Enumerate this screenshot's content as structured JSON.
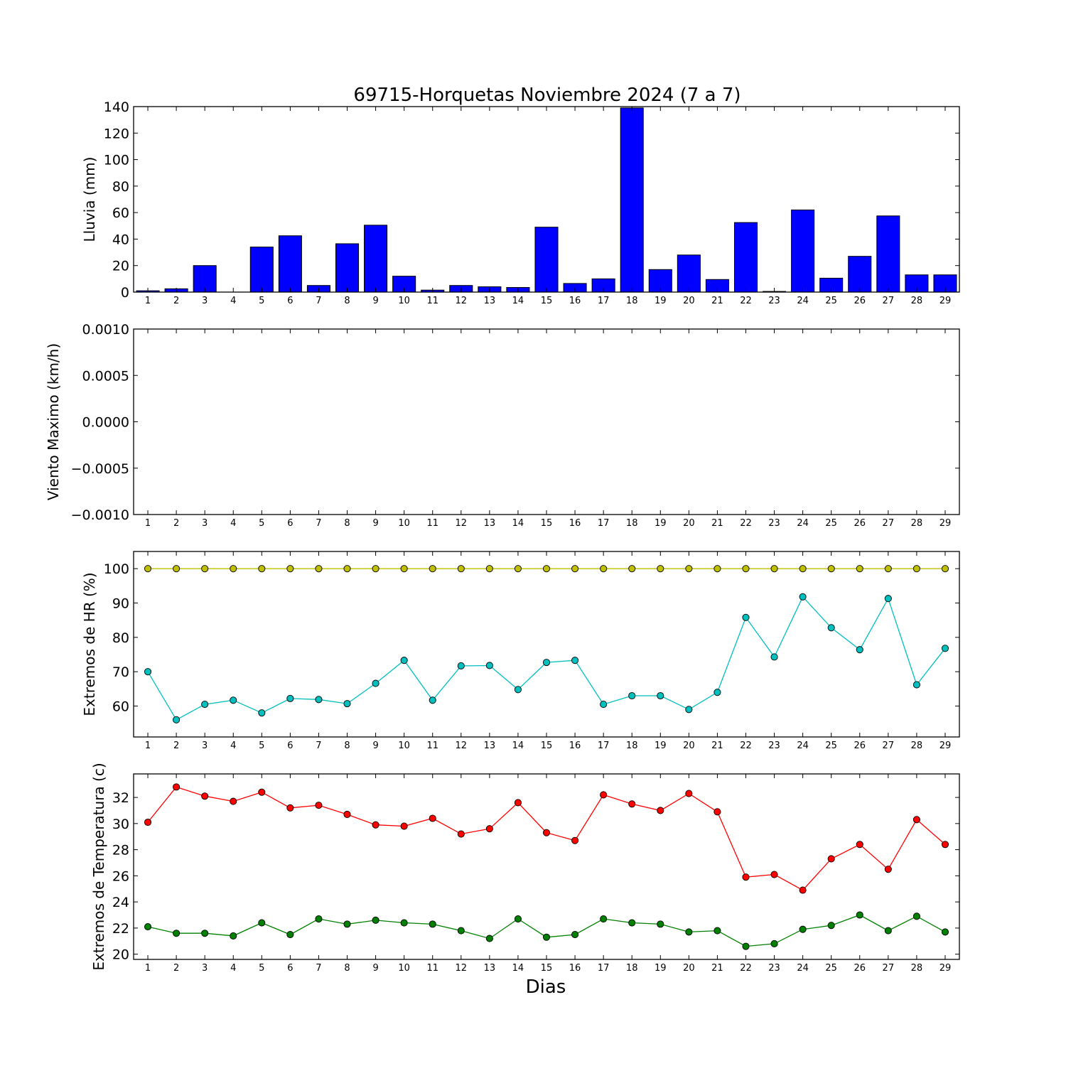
{
  "chart_data": {
    "title": "69715-Horquetas Noviembre 2024  (7 a 7)",
    "xlabel": "Dias",
    "days": [
      1,
      2,
      3,
      4,
      5,
      6,
      7,
      8,
      9,
      10,
      11,
      12,
      13,
      14,
      15,
      16,
      17,
      18,
      19,
      20,
      21,
      22,
      23,
      24,
      25,
      26,
      27,
      28,
      29
    ],
    "panels": [
      {
        "id": "rain",
        "type": "bar",
        "ylabel": "Lluvia (mm)",
        "ylim": [
          0,
          140
        ],
        "yticks": [
          0,
          20,
          40,
          60,
          80,
          100,
          120,
          140
        ],
        "ytick_labels": [
          "0",
          "20",
          "40",
          "60",
          "80",
          "100",
          "120",
          "140"
        ],
        "series": [
          {
            "color": "#0000ff",
            "values": [
              1.0,
              2.5,
              20.0,
              0.0,
              34.0,
              42.5,
              5.0,
              36.5,
              50.5,
              12.0,
              1.5,
              5.0,
              4.0,
              3.5,
              49.0,
              6.5,
              10.0,
              139.0,
              17.0,
              28.0,
              9.5,
              52.5,
              0.5,
              62.0,
              10.5,
              27.0,
              57.5,
              13.0,
              13.0
            ]
          }
        ]
      },
      {
        "id": "wind",
        "type": "line",
        "ylabel": "Viento Maximo (km/h)",
        "ylim": [
          -0.001,
          0.001
        ],
        "yticks": [
          -0.001,
          -0.0005,
          0.0,
          0.0005,
          0.001
        ],
        "ytick_labels": [
          "−0.0010",
          "−0.0005",
          "0.0000",
          "0.0005",
          "0.0010"
        ],
        "series": []
      },
      {
        "id": "humidity",
        "type": "line",
        "ylabel": "Extremos de HR (%)",
        "ylim": [
          51,
          105
        ],
        "yticks": [
          60,
          70,
          80,
          90,
          100
        ],
        "ytick_labels": [
          "60",
          "70",
          "80",
          "90",
          "100"
        ],
        "series": [
          {
            "color": "#bfbf00",
            "values": [
              100,
              100,
              100,
              100,
              100,
              100,
              100,
              100,
              100,
              100,
              100,
              100,
              100,
              100,
              100,
              100,
              100,
              100,
              100,
              100,
              100,
              100,
              100,
              100,
              100,
              100,
              100,
              100,
              100
            ]
          },
          {
            "color": "#00bfbf",
            "values": [
              70.0,
              56.0,
              60.5,
              61.7,
              58.0,
              62.2,
              61.9,
              60.7,
              66.6,
              73.3,
              61.7,
              71.7,
              71.8,
              64.8,
              72.7,
              73.3,
              60.5,
              63.0,
              63.0,
              59.0,
              64.0,
              85.8,
              74.3,
              91.8,
              82.8,
              76.4,
              91.3,
              66.2,
              76.8
            ]
          }
        ]
      },
      {
        "id": "temperature",
        "type": "line",
        "ylabel": "Extremos de Temperatura (c)",
        "ylim": [
          19.6,
          33.8
        ],
        "yticks": [
          20,
          22,
          24,
          26,
          28,
          30,
          32
        ],
        "ytick_labels": [
          "20",
          "22",
          "24",
          "26",
          "28",
          "30",
          "32"
        ],
        "series": [
          {
            "color": "#ff0000",
            "values": [
              30.1,
              32.8,
              32.1,
              31.7,
              32.4,
              31.2,
              31.4,
              30.7,
              29.9,
              29.8,
              30.4,
              29.2,
              29.6,
              31.6,
              29.3,
              28.7,
              32.2,
              31.5,
              31.0,
              32.3,
              30.9,
              25.9,
              26.1,
              24.9,
              27.3,
              28.4,
              26.5,
              30.3,
              28.4
            ]
          },
          {
            "color": "#008000",
            "values": [
              22.1,
              21.6,
              21.6,
              21.4,
              22.4,
              21.5,
              22.7,
              22.3,
              22.6,
              22.4,
              22.3,
              21.8,
              21.2,
              22.7,
              21.3,
              21.5,
              22.7,
              22.4,
              22.3,
              21.7,
              21.8,
              20.6,
              20.8,
              21.9,
              22.2,
              23.0,
              21.8,
              22.9,
              21.7
            ]
          }
        ]
      }
    ]
  }
}
